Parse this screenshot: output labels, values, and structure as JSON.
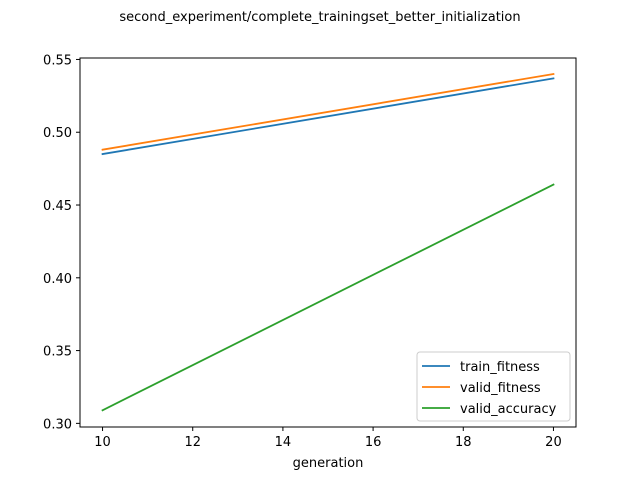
{
  "chart_data": {
    "type": "line",
    "title": "second_experiment/complete_trainingset_better_initialization",
    "xlabel": "generation",
    "ylabel": "",
    "x": [
      10,
      20
    ],
    "xlim": [
      9.5,
      20.5
    ],
    "ylim": [
      0.2975,
      0.551
    ],
    "xticks": [
      10,
      12,
      14,
      16,
      18,
      20
    ],
    "yticks": [
      0.3,
      0.35,
      0.4,
      0.45,
      0.5,
      0.55
    ],
    "xtick_labels": [
      "10",
      "12",
      "14",
      "16",
      "18",
      "20"
    ],
    "ytick_labels": [
      "0.30",
      "0.35",
      "0.40",
      "0.45",
      "0.50",
      "0.55"
    ],
    "grid": false,
    "legend_position": "lower-right",
    "series": [
      {
        "name": "train_fitness",
        "values": [
          0.485,
          0.537
        ],
        "color": "#1f77b4"
      },
      {
        "name": "valid_fitness",
        "values": [
          0.488,
          0.54
        ],
        "color": "#ff7f0e"
      },
      {
        "name": "valid_accuracy",
        "values": [
          0.309,
          0.464
        ],
        "color": "#2ca02c"
      }
    ]
  }
}
